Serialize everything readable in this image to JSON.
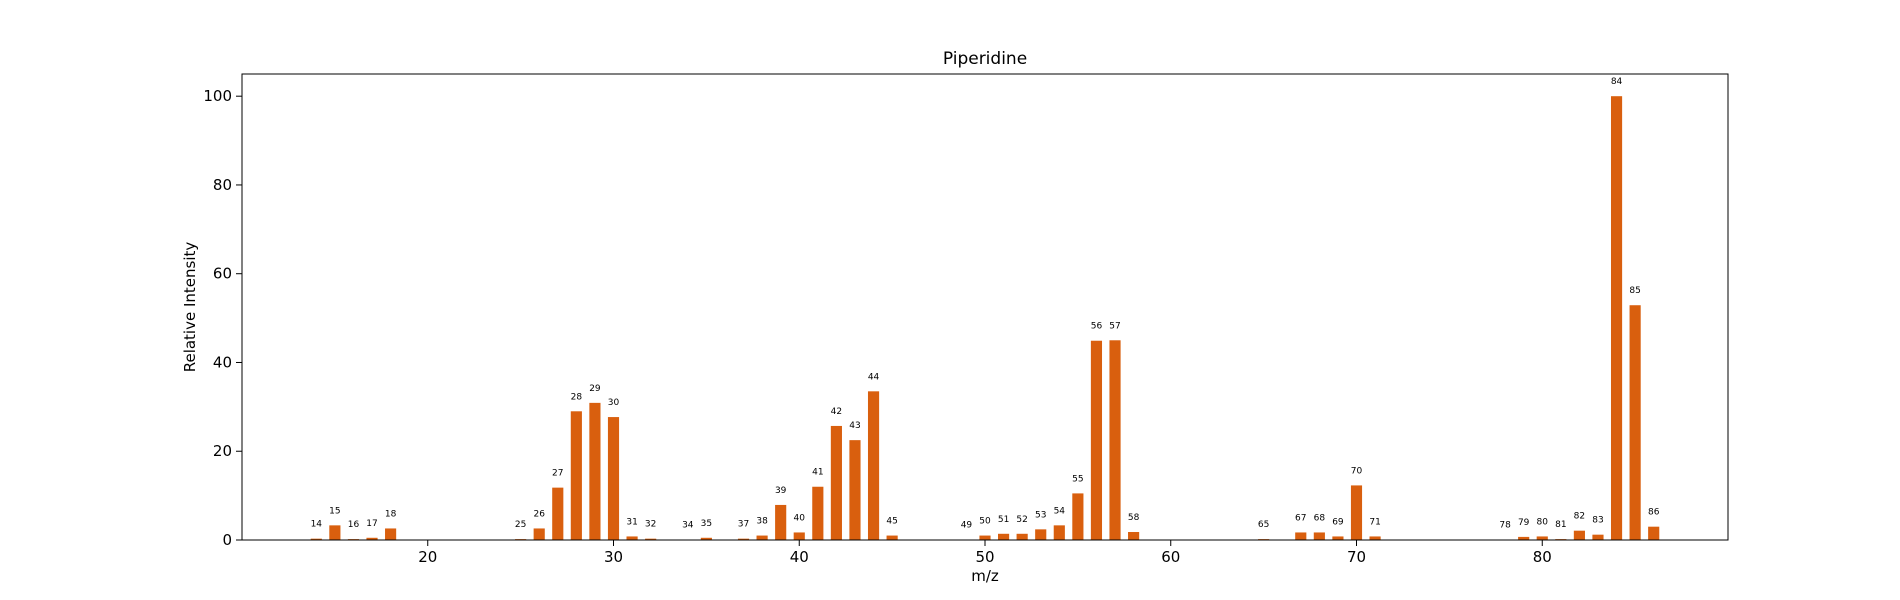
{
  "chart_data": {
    "type": "bar",
    "title": "Piperidine",
    "xlabel": "m/z",
    "ylabel": "Relative Intensity",
    "xlim": [
      10,
      90
    ],
    "ylim": [
      0,
      105
    ],
    "xticks": [
      20,
      30,
      40,
      50,
      60,
      70,
      80
    ],
    "yticks": [
      0,
      20,
      40,
      60,
      80,
      100
    ],
    "grid": false,
    "bar_color": "#d95f0e",
    "bars": [
      {
        "x": 14,
        "y": 0.3
      },
      {
        "x": 15,
        "y": 3.3
      },
      {
        "x": 16,
        "y": 0.2
      },
      {
        "x": 17,
        "y": 0.5
      },
      {
        "x": 18,
        "y": 2.6
      },
      {
        "x": 25,
        "y": 0.2
      },
      {
        "x": 26,
        "y": 2.6
      },
      {
        "x": 27,
        "y": 11.8
      },
      {
        "x": 28,
        "y": 29.0
      },
      {
        "x": 29,
        "y": 30.9
      },
      {
        "x": 30,
        "y": 27.7
      },
      {
        "x": 31,
        "y": 0.8
      },
      {
        "x": 32,
        "y": 0.3
      },
      {
        "x": 34,
        "y": 0.1
      },
      {
        "x": 35,
        "y": 0.5
      },
      {
        "x": 37,
        "y": 0.3
      },
      {
        "x": 38,
        "y": 1.0
      },
      {
        "x": 39,
        "y": 7.9
      },
      {
        "x": 40,
        "y": 1.7
      },
      {
        "x": 41,
        "y": 12.0
      },
      {
        "x": 42,
        "y": 25.7
      },
      {
        "x": 43,
        "y": 22.5
      },
      {
        "x": 44,
        "y": 33.5
      },
      {
        "x": 45,
        "y": 1.0
      },
      {
        "x": 49,
        "y": 0.1
      },
      {
        "x": 50,
        "y": 1.0
      },
      {
        "x": 51,
        "y": 1.4
      },
      {
        "x": 52,
        "y": 1.4
      },
      {
        "x": 53,
        "y": 2.4
      },
      {
        "x": 54,
        "y": 3.3
      },
      {
        "x": 55,
        "y": 10.5
      },
      {
        "x": 56,
        "y": 44.9
      },
      {
        "x": 57,
        "y": 45.0
      },
      {
        "x": 58,
        "y": 1.8
      },
      {
        "x": 65,
        "y": 0.2
      },
      {
        "x": 67,
        "y": 1.7
      },
      {
        "x": 68,
        "y": 1.7
      },
      {
        "x": 69,
        "y": 0.8
      },
      {
        "x": 70,
        "y": 12.3
      },
      {
        "x": 71,
        "y": 0.8
      },
      {
        "x": 78,
        "y": 0.1
      },
      {
        "x": 79,
        "y": 0.7
      },
      {
        "x": 80,
        "y": 0.8
      },
      {
        "x": 81,
        "y": 0.2
      },
      {
        "x": 82,
        "y": 2.1
      },
      {
        "x": 83,
        "y": 1.2
      },
      {
        "x": 84,
        "y": 100.0
      },
      {
        "x": 85,
        "y": 52.9
      },
      {
        "x": 86,
        "y": 3.0
      }
    ]
  }
}
